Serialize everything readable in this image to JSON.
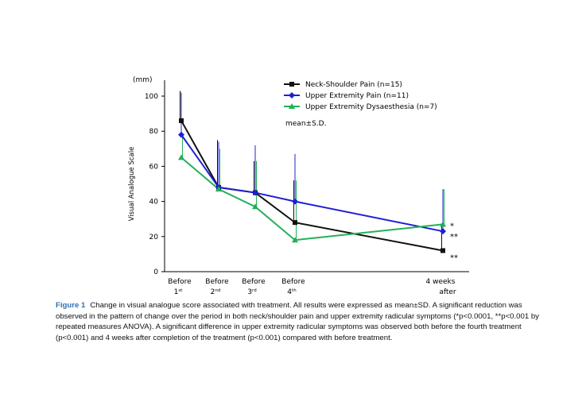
{
  "chart_data": {
    "type": "line",
    "ylabel": "Visual Analogue Scale",
    "yunit": "(mm)",
    "ylim": [
      0,
      100
    ],
    "yticks": [
      0,
      20,
      40,
      60,
      80,
      100
    ],
    "x_labels": [
      {
        "main": "Before",
        "sub_num": "1",
        "sub_sup": "st"
      },
      {
        "main": "Before",
        "sub_num": "2",
        "sub_sup": "nd"
      },
      {
        "main": "Before",
        "sub_num": "3",
        "sub_sup": "rd"
      },
      {
        "main": "Before",
        "sub_num": "4",
        "sub_sup": "th"
      },
      {
        "main": "4 weeks",
        "sub_num": "after",
        "sub_sup": ""
      }
    ],
    "x": [
      1,
      2,
      3,
      4,
      8
    ],
    "series": [
      {
        "name": "Neck-Shoulder Pain (n=15)",
        "color": "#111111",
        "marker": "square",
        "values": [
          86,
          48,
          45,
          28,
          12
        ],
        "sd": [
          17,
          27,
          18,
          24,
          14
        ]
      },
      {
        "name": "Upper Extremity Pain (n=11)",
        "color": "#1f1fd6",
        "marker": "diamond",
        "values": [
          78,
          48,
          45,
          40,
          23
        ],
        "sd": [
          24,
          26,
          27,
          27,
          24
        ]
      },
      {
        "name": "Upper Extremity Dysaesthesia (n=7)",
        "color": "#22b05a",
        "marker": "triangle",
        "values": [
          65,
          47,
          37,
          18,
          27
        ],
        "sd": [
          14,
          23,
          26,
          34,
          20
        ]
      }
    ],
    "legend_note": "mean±S.D.",
    "legend_position": "top-right",
    "significance": [
      {
        "text": "*",
        "value": 26
      },
      {
        "text": "**",
        "value": 20
      },
      {
        "text": "**",
        "value": 8
      }
    ]
  },
  "caption": {
    "label": "Figure 1",
    "text": "Change in visual analogue score associated with treatment. All results were expressed as mean±SD. A significant reduction was observed in the pattern of change over the period in both neck/shoulder pain and upper extremity radicular symptoms (*p<0.0001, **p<0.001 by repeated measures ANOVA). A significant difference in upper extremity radicular symptoms was observed both before the fourth treatment (p<0.001) and 4 weeks after completion of the treatment (p<0.001) compared with before treatment."
  }
}
